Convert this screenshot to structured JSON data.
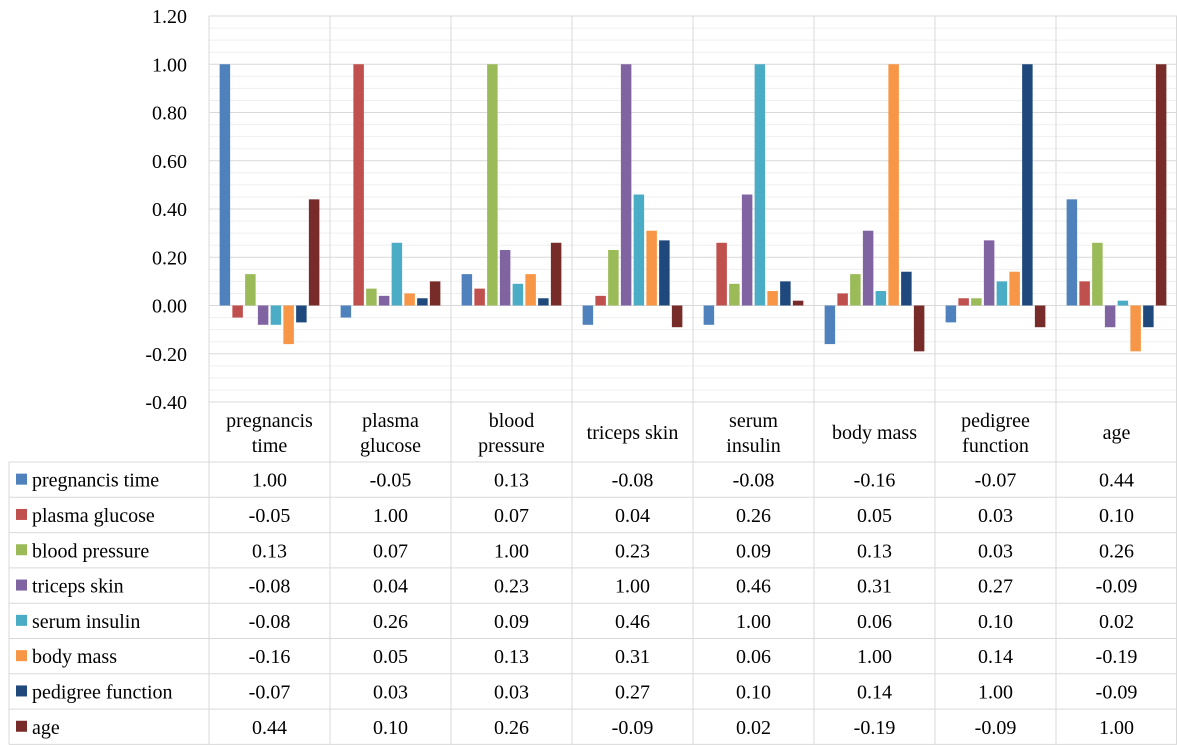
{
  "chart_data": {
    "type": "bar",
    "categories": [
      [
        "pregnancis",
        "time"
      ],
      [
        "plasma",
        "glucose"
      ],
      [
        "blood",
        "pressure"
      ],
      [
        "triceps skin"
      ],
      [
        "serum",
        "insulin"
      ],
      [
        "body mass"
      ],
      [
        "pedigree",
        "function"
      ],
      [
        "age"
      ]
    ],
    "ylim": [
      -0.4,
      1.2
    ],
    "y_ticks": [
      -0.4,
      -0.2,
      0.0,
      0.2,
      0.4,
      0.6,
      0.8,
      1.0,
      1.2
    ],
    "y_tick_labels": [
      "-0.40",
      "-0.20",
      "0.00",
      "0.20",
      "0.40",
      "0.60",
      "0.80",
      "1.00",
      "1.20"
    ],
    "grid": true,
    "legend": "data-table",
    "series": [
      {
        "name": "pregnancis time",
        "color": "#4f81bd",
        "values": [
          1.0,
          -0.05,
          0.13,
          -0.08,
          -0.08,
          -0.16,
          -0.07,
          0.44
        ],
        "labels": [
          "1.00",
          "-0.05",
          "0.13",
          "-0.08",
          "-0.08",
          "-0.16",
          "-0.07",
          "0.44"
        ]
      },
      {
        "name": "plasma glucose",
        "color": "#c0504d",
        "values": [
          -0.05,
          1.0,
          0.07,
          0.04,
          0.26,
          0.05,
          0.03,
          0.1
        ],
        "labels": [
          "-0.05",
          "1.00",
          "0.07",
          "0.04",
          "0.26",
          "0.05",
          "0.03",
          "0.10"
        ]
      },
      {
        "name": "blood pressure",
        "color": "#9bbb59",
        "values": [
          0.13,
          0.07,
          1.0,
          0.23,
          0.09,
          0.13,
          0.03,
          0.26
        ],
        "labels": [
          "0.13",
          "0.07",
          "1.00",
          "0.23",
          "0.09",
          "0.13",
          "0.03",
          "0.26"
        ]
      },
      {
        "name": "triceps skin",
        "color": "#8064a2",
        "values": [
          -0.08,
          0.04,
          0.23,
          1.0,
          0.46,
          0.31,
          0.27,
          -0.09
        ],
        "labels": [
          "-0.08",
          "0.04",
          "0.23",
          "1.00",
          "0.46",
          "0.31",
          "0.27",
          "-0.09"
        ]
      },
      {
        "name": "serum insulin",
        "color": "#4bacc6",
        "values": [
          -0.08,
          0.26,
          0.09,
          0.46,
          1.0,
          0.06,
          0.1,
          0.02
        ],
        "labels": [
          "-0.08",
          "0.26",
          "0.09",
          "0.46",
          "1.00",
          "0.06",
          "0.10",
          "0.02"
        ]
      },
      {
        "name": "body mass",
        "color": "#f79646",
        "values": [
          -0.16,
          0.05,
          0.13,
          0.31,
          0.06,
          1.0,
          0.14,
          -0.19
        ],
        "labels": [
          "-0.16",
          "0.05",
          "0.13",
          "0.31",
          "0.06",
          "1.00",
          "0.14",
          "-0.19"
        ]
      },
      {
        "name": "pedigree function",
        "color": "#1f497d",
        "values": [
          -0.07,
          0.03,
          0.03,
          0.27,
          0.1,
          0.14,
          1.0,
          -0.09
        ],
        "labels": [
          "-0.07",
          "0.03",
          "0.03",
          "0.27",
          "0.10",
          "0.14",
          "1.00",
          "-0.09"
        ]
      },
      {
        "name": "age",
        "color": "#772c2a",
        "values": [
          0.44,
          0.1,
          0.26,
          -0.09,
          0.02,
          -0.19,
          -0.09,
          1.0
        ],
        "labels": [
          "0.44",
          "0.10",
          "0.26",
          "-0.09",
          "0.02",
          "-0.19",
          "-0.09",
          "1.00"
        ]
      }
    ]
  }
}
